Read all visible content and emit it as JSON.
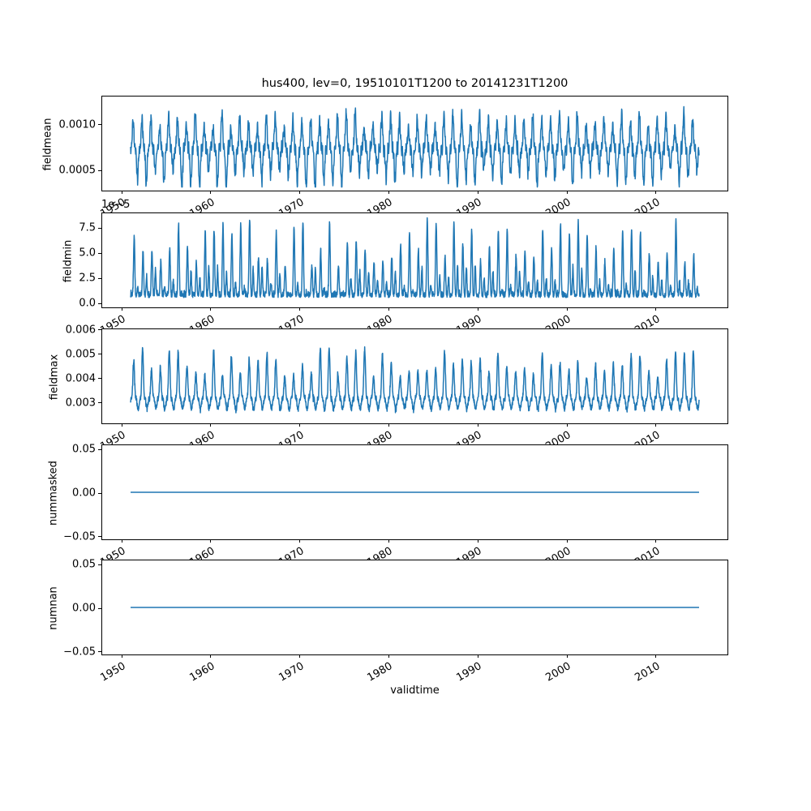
{
  "figure": {
    "title": "hus400, lev=0, 19510101T1200 to 20141231T1200",
    "xlabel": "validtime",
    "background": "#ffffff",
    "line_color": "#1f77b4",
    "axis_color": "#000000",
    "text_color": "#000000"
  },
  "x_axis": {
    "label": "validtime",
    "tick_labels": [
      "1950",
      "1960",
      "1970",
      "1980",
      "1990",
      "2000",
      "2010"
    ],
    "tick_values": [
      1950,
      1960,
      1970,
      1980,
      1990,
      2000,
      2010
    ],
    "range": [
      1947.8,
      2018.2
    ],
    "tick_rotation_deg": 30
  },
  "chart_data": [
    {
      "type": "line",
      "title": "hus400, lev=0, 19510101T1200 to 20141231T1200",
      "ylabel": "fieldmean",
      "xlabel": "validtime",
      "x_start": 1951.0,
      "x_end": 2015.0,
      "points_per_year": 48,
      "ylim": [
        0.00026,
        0.00131
      ],
      "yticks": [
        {
          "v": 0.0005,
          "label": "0.0005"
        },
        {
          "v": 0.001,
          "label": "0.0010"
        }
      ],
      "grid": false,
      "legend": false,
      "series_profile": {
        "kind": "mean",
        "seed": 11,
        "base": 0.00073,
        "annual_peak_max": 0.00127,
        "annual_trough_min": 0.0003,
        "noise_sd": 7e-05
      }
    },
    {
      "type": "line",
      "ylabel": "fieldmin",
      "xlabel": "validtime",
      "offset_text": "1e−5",
      "x_start": 1951.0,
      "x_end": 2015.0,
      "points_per_year": 48,
      "ylim": [
        -5.4e-06,
        8.95e-05
      ],
      "yticks": [
        {
          "v": 0.0,
          "label": "0.0"
        },
        {
          "v": 2.5e-05,
          "label": "2.5"
        },
        {
          "v": 5e-05,
          "label": "5.0"
        },
        {
          "v": 7.5e-05,
          "label": "7.5"
        }
      ],
      "grid": false,
      "legend": false,
      "series_profile": {
        "kind": "min",
        "seed": 22,
        "base": 4.5e-06,
        "annual_peak_max": 8.75e-05,
        "floor": 6e-07,
        "noise_sd": 9e-06
      }
    },
    {
      "type": "line",
      "ylabel": "fieldmax",
      "xlabel": "validtime",
      "x_start": 1951.0,
      "x_end": 2015.0,
      "points_per_year": 48,
      "ylim": [
        0.0021,
        0.00602
      ],
      "yticks": [
        {
          "v": 0.003,
          "label": "0.003"
        },
        {
          "v": 0.004,
          "label": "0.004"
        },
        {
          "v": 0.005,
          "label": "0.005"
        },
        {
          "v": 0.006,
          "label": "0.006"
        }
      ],
      "grid": false,
      "legend": false,
      "series_profile": {
        "kind": "max",
        "seed": 33,
        "base": 0.00315,
        "annual_peak_max": 0.00585,
        "annual_trough_min": 0.00226,
        "noise_sd": 0.0002
      }
    },
    {
      "type": "line",
      "ylabel": "nummasked",
      "xlabel": "validtime",
      "x_start": 1951.0,
      "x_end": 2015.0,
      "points_per_year": 48,
      "ylim": [
        -0.055,
        0.055
      ],
      "yticks": [
        {
          "v": -0.05,
          "label": "−0.05"
        },
        {
          "v": 0.0,
          "label": "0.00"
        },
        {
          "v": 0.05,
          "label": "0.05"
        }
      ],
      "grid": false,
      "legend": false,
      "series_profile": {
        "kind": "flat",
        "value": 0.0
      }
    },
    {
      "type": "line",
      "ylabel": "numnan",
      "xlabel": "validtime",
      "x_start": 1951.0,
      "x_end": 2015.0,
      "points_per_year": 48,
      "ylim": [
        -0.055,
        0.055
      ],
      "yticks": [
        {
          "v": -0.05,
          "label": "−0.05"
        },
        {
          "v": 0.0,
          "label": "0.00"
        },
        {
          "v": 0.05,
          "label": "0.05"
        }
      ],
      "grid": false,
      "legend": false,
      "series_profile": {
        "kind": "flat",
        "value": 0.0
      }
    }
  ]
}
